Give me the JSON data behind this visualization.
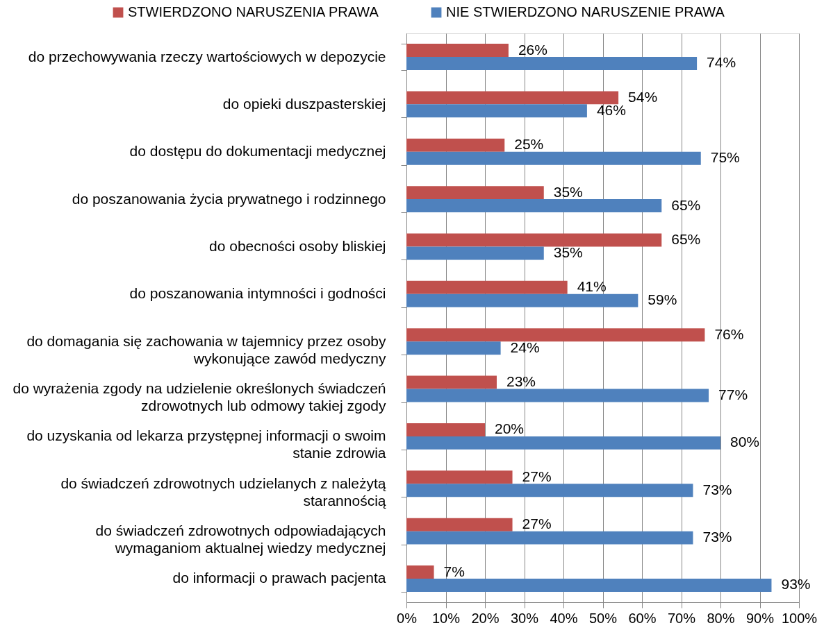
{
  "chart_data": {
    "type": "bar",
    "orientation": "horizontal",
    "legend": "top",
    "grid": "x",
    "categories": [
      "do przechowywania rzeczy wartościowych w depozycie",
      "do opieki duszpasterskiej",
      "do dostępu do dokumentacji medycznej",
      "do poszanowania życia prywatnego i rodzinnego",
      "do obecności osoby bliskiej",
      "do poszanowania intymności i godności",
      "do domagania się zachowania w tajemnicy przez osoby\nwykonujące zawód medyczny",
      "do wyrażenia zgody na udzielenie określonych świadczeń\nzdrowotnych lub odmowy takiej zgody",
      "do uzyskania od lekarza przystępnej informacji o swoim\nstanie zdrowia",
      "do świadczeń zdrowotnych udzielanych z należytą\nstarannością",
      "do świadczeń zdrowotnych odpowiadających\nwymaganiom aktualnej wiedzy medycznej",
      "do informacji o prawach pacjenta"
    ],
    "series": [
      {
        "name": "STWIERDZONO NARUSZENIA PRAWA",
        "color": "#c0504d",
        "values": [
          26,
          54,
          25,
          35,
          65,
          41,
          76,
          23,
          20,
          27,
          27,
          7
        ],
        "value_labels": [
          "26%",
          "54%",
          "25%",
          "35%",
          "65%",
          "41%",
          "76%",
          "23%",
          "20%",
          "27%",
          "27%",
          "7%"
        ]
      },
      {
        "name": "NIE STWIERDZONO NARUSZENIE PRAWA",
        "color": "#4f81bd",
        "values": [
          74,
          46,
          75,
          65,
          35,
          59,
          24,
          77,
          80,
          73,
          73,
          93
        ],
        "value_labels": [
          "74%",
          "46%",
          "75%",
          "65%",
          "35%",
          "59%",
          "24%",
          "77%",
          "80%",
          "73%",
          "73%",
          "93%"
        ]
      }
    ],
    "xlim": [
      0,
      100
    ],
    "xticks": [
      {
        "value": 0,
        "label": "0%"
      },
      {
        "value": 10,
        "label": "10%"
      },
      {
        "value": 20,
        "label": "20%"
      },
      {
        "value": 30,
        "label": "30%"
      },
      {
        "value": 40,
        "label": "40%"
      },
      {
        "value": 50,
        "label": "50%"
      },
      {
        "value": 60,
        "label": "60%"
      },
      {
        "value": 70,
        "label": "70%"
      },
      {
        "value": 80,
        "label": "80%"
      },
      {
        "value": 90,
        "label": "90%"
      },
      {
        "value": 100,
        "label": "100%"
      }
    ]
  }
}
